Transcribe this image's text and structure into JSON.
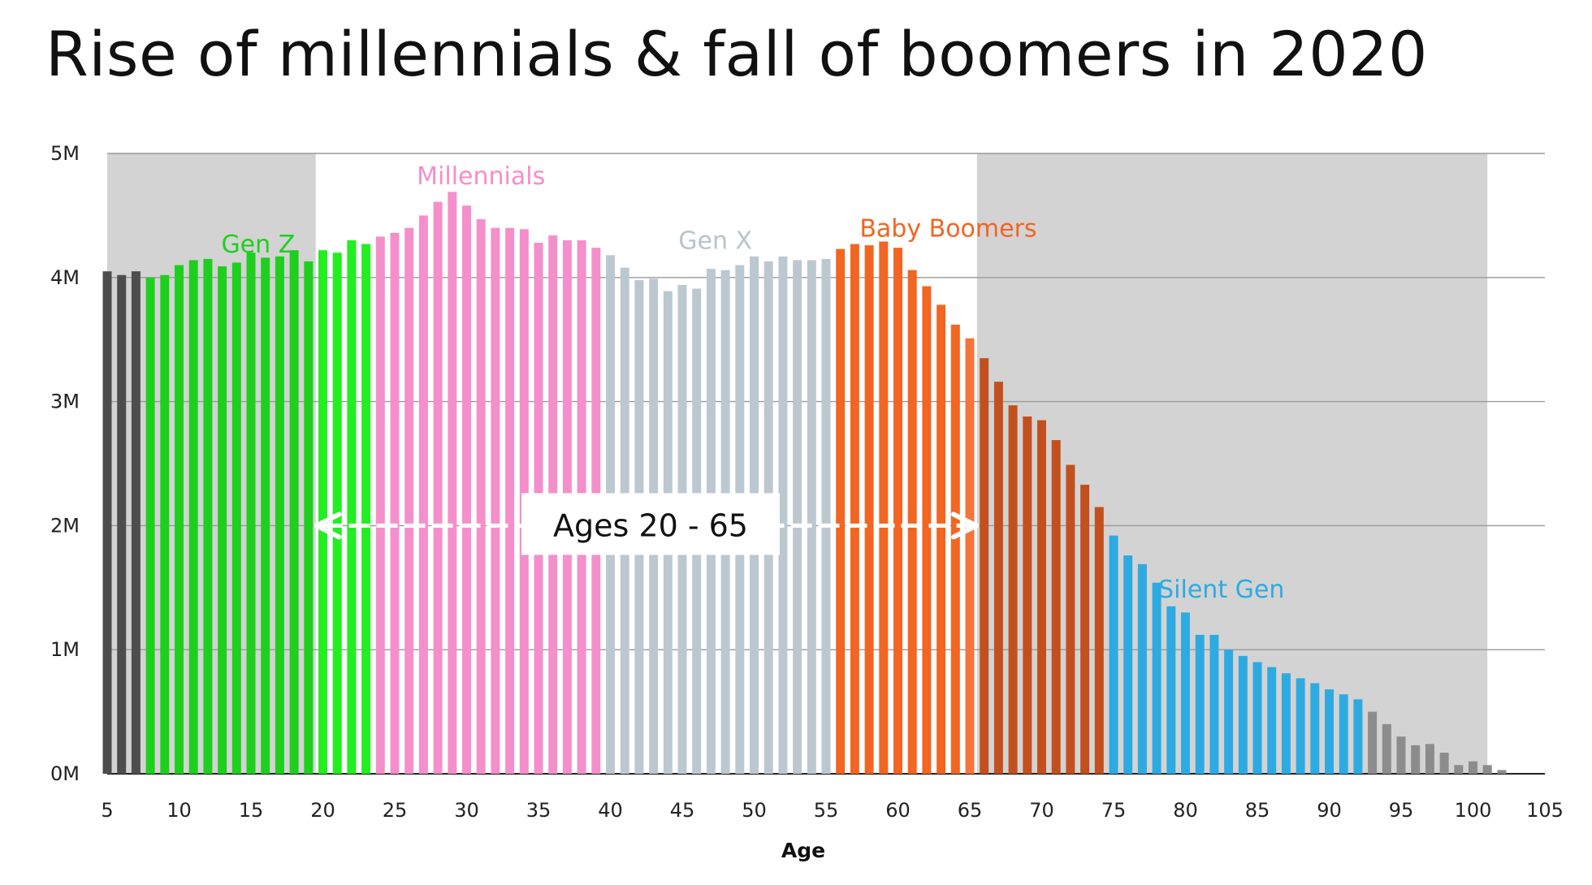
{
  "chart_data": {
    "type": "bar",
    "title": "Rise of millennials & fall of boomers in 2020",
    "xlabel": "Age",
    "ylabel": "",
    "xlim": [
      5,
      105
    ],
    "ylim": [
      0,
      5000000
    ],
    "x_ticks": [
      5,
      10,
      15,
      20,
      25,
      30,
      35,
      40,
      45,
      50,
      55,
      60,
      65,
      70,
      75,
      80,
      85,
      90,
      95,
      100,
      105
    ],
    "y_ticks": [
      {
        "value": 0,
        "label": "0M"
      },
      {
        "value": 1000000,
        "label": "1M"
      },
      {
        "value": 2000000,
        "label": "2M"
      },
      {
        "value": 3000000,
        "label": "3M"
      },
      {
        "value": 4000000,
        "label": "4M"
      },
      {
        "value": 5000000,
        "label": "5M"
      }
    ],
    "grid": true,
    "ages": [
      5,
      6,
      7,
      8,
      9,
      10,
      11,
      12,
      13,
      14,
      15,
      16,
      17,
      18,
      19,
      20,
      21,
      22,
      23,
      24,
      25,
      26,
      27,
      28,
      29,
      30,
      31,
      32,
      33,
      34,
      35,
      36,
      37,
      38,
      39,
      40,
      41,
      42,
      43,
      44,
      45,
      46,
      47,
      48,
      49,
      50,
      51,
      52,
      53,
      54,
      55,
      56,
      57,
      58,
      59,
      60,
      61,
      62,
      63,
      64,
      65,
      66,
      67,
      68,
      69,
      70,
      71,
      72,
      73,
      74,
      75,
      76,
      77,
      78,
      79,
      80,
      81,
      82,
      83,
      84,
      85,
      86,
      87,
      88,
      89,
      90,
      91,
      92,
      93,
      94,
      95,
      96,
      97,
      98,
      99,
      100,
      101,
      102
    ],
    "values": [
      4050000,
      4020000,
      4050000,
      4000000,
      4020000,
      4100000,
      4140000,
      4150000,
      4090000,
      4120000,
      4200000,
      4160000,
      4170000,
      4220000,
      4130000,
      4220000,
      4200000,
      4300000,
      4270000,
      4330000,
      4360000,
      4400000,
      4500000,
      4610000,
      4690000,
      4580000,
      4470000,
      4400000,
      4400000,
      4390000,
      4280000,
      4340000,
      4300000,
      4300000,
      4240000,
      4180000,
      4080000,
      3980000,
      3990000,
      3890000,
      3940000,
      3910000,
      4070000,
      4060000,
      4100000,
      4170000,
      4130000,
      4170000,
      4140000,
      4140000,
      4150000,
      4230000,
      4270000,
      4260000,
      4290000,
      4240000,
      4060000,
      3930000,
      3780000,
      3620000,
      3510000,
      3350000,
      3160000,
      2970000,
      2880000,
      2850000,
      2690000,
      2490000,
      2330000,
      2150000,
      1920000,
      1760000,
      1690000,
      1540000,
      1350000,
      1300000,
      1120000,
      1120000,
      1000000,
      950000,
      900000,
      860000,
      810000,
      770000,
      730000,
      680000,
      640000,
      600000,
      500000,
      400000,
      300000,
      230000,
      240000,
      170000,
      70000,
      100000,
      70000,
      30000
    ],
    "series": [
      {
        "name": "Gen Z",
        "from_age": 8,
        "to_age": 23,
        "color": "#1ecf1e"
      },
      {
        "name": "Millennials",
        "from_age": 24,
        "to_age": 39,
        "color": "#f48fcb"
      },
      {
        "name": "Gen X",
        "from_age": 40,
        "to_age": 55,
        "color": "#bcc8d0"
      },
      {
        "name": "Baby Boomers",
        "from_age": 56,
        "to_age": 74,
        "color": "#f26522"
      },
      {
        "name": "Silent Gen",
        "from_age": 75,
        "to_age": 92,
        "color": "#2eaae2"
      }
    ],
    "other_colors": {
      "young_unlabeled": "#4d4d4d",
      "old_unlabeled": "#8c8c8c",
      "shade": "#d3d3d3",
      "gen_z_in_window": "#22ee22",
      "boomers_outside_window": "#c2501e",
      "boomers_edge": "#f5743a"
    },
    "shaded_regions": [
      [
        5,
        19.5
      ],
      [
        65.5,
        101
      ]
    ],
    "annotation": {
      "label": "Ages 20 - 65",
      "from_age": 20,
      "to_age": 65
    }
  }
}
